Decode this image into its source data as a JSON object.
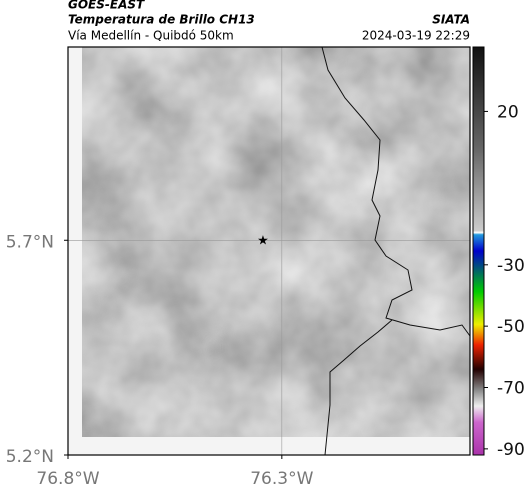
{
  "header": {
    "title": "GOES-EAST",
    "subtitle": "Temperatura de Brillo CH13",
    "location": "Vía Medellín - Quibdó 50km",
    "source": "SIATA",
    "timestamp": "2024-03-19 22:29"
  },
  "map": {
    "xlim": [
      -76.8,
      -75.86
    ],
    "ylim": [
      5.2,
      6.15
    ],
    "xticks": [
      {
        "value": -76.8,
        "label": "76.8°W"
      },
      {
        "value": -76.3,
        "label": "76.3°W"
      }
    ],
    "yticks": [
      {
        "value": 5.2,
        "label": "5.2°N"
      },
      {
        "value": 5.7,
        "label": "5.7°N"
      }
    ],
    "grid": true
  },
  "colorbar": {
    "lim": [
      41,
      -92
    ],
    "ticks": [
      20,
      -30,
      -50,
      -70,
      -90
    ]
  }
}
